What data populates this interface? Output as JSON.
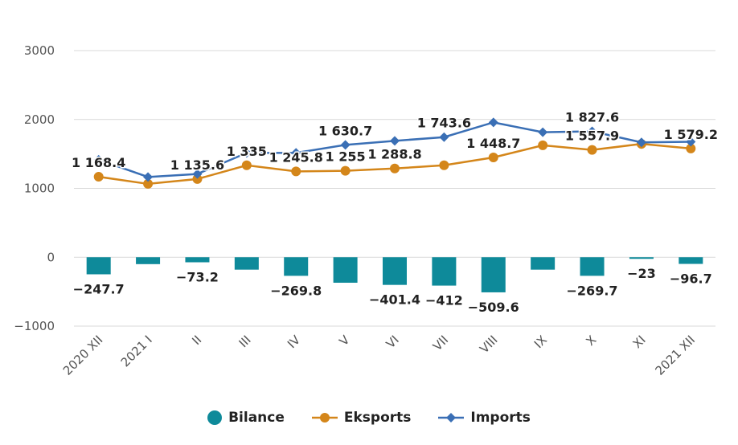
{
  "chart_data": {
    "type": "bar+line",
    "categories": [
      "2020 XII",
      "2021 I",
      "II",
      "III",
      "IV",
      "V",
      "VI",
      "VII",
      "VIII",
      "IX",
      "X",
      "XI",
      "2021 XII"
    ],
    "ylim": [
      -1000,
      3000
    ],
    "yticks": [
      -1000,
      0,
      1000,
      2000,
      3000
    ],
    "ytick_labels": [
      "−1000",
      "0",
      "1000",
      "2000",
      "3000"
    ],
    "grid": true,
    "legend_position": "bottom",
    "series": [
      {
        "name": "Bilance",
        "kind": "bar",
        "color": "#0e8a9a",
        "values": [
          -247.7,
          -100,
          -73.2,
          -180,
          -269.8,
          -370,
          -401.4,
          -412,
          -509.6,
          -180,
          -269.7,
          -23,
          -96.7
        ],
        "labels": [
          "−247.7",
          "",
          "−73.2",
          "",
          "−269.8",
          "",
          "−401.4",
          "−412",
          "−509.6",
          "",
          "−269.7",
          "−23",
          "−96.7"
        ]
      },
      {
        "name": "Eksports",
        "kind": "line",
        "color": "#d4861a",
        "values": [
          1168.4,
          1065,
          1135.6,
          1335,
          1245.8,
          1255,
          1288.8,
          1335,
          1448.7,
          1625,
          1557.9,
          1645,
          1579.2
        ],
        "labels": [
          "1 168.4",
          "",
          "1 135.6",
          "1 335",
          "1 245.8",
          "1 255",
          "1 288.8",
          "",
          "1 448.7",
          "",
          "1 557.9",
          "",
          "1 579.2"
        ]
      },
      {
        "name": "Imports",
        "kind": "line",
        "color": "#3a6fb5",
        "values": [
          1416,
          1165,
          1209,
          1515,
          1516,
          1630.7,
          1690,
          1743.6,
          1958,
          1815,
          1827.6,
          1668,
          1676
        ],
        "labels": [
          "",
          "",
          "",
          "",
          "",
          "1 630.7",
          "",
          "1 743.6",
          "",
          "",
          "1 827.6",
          "",
          ""
        ]
      }
    ]
  }
}
